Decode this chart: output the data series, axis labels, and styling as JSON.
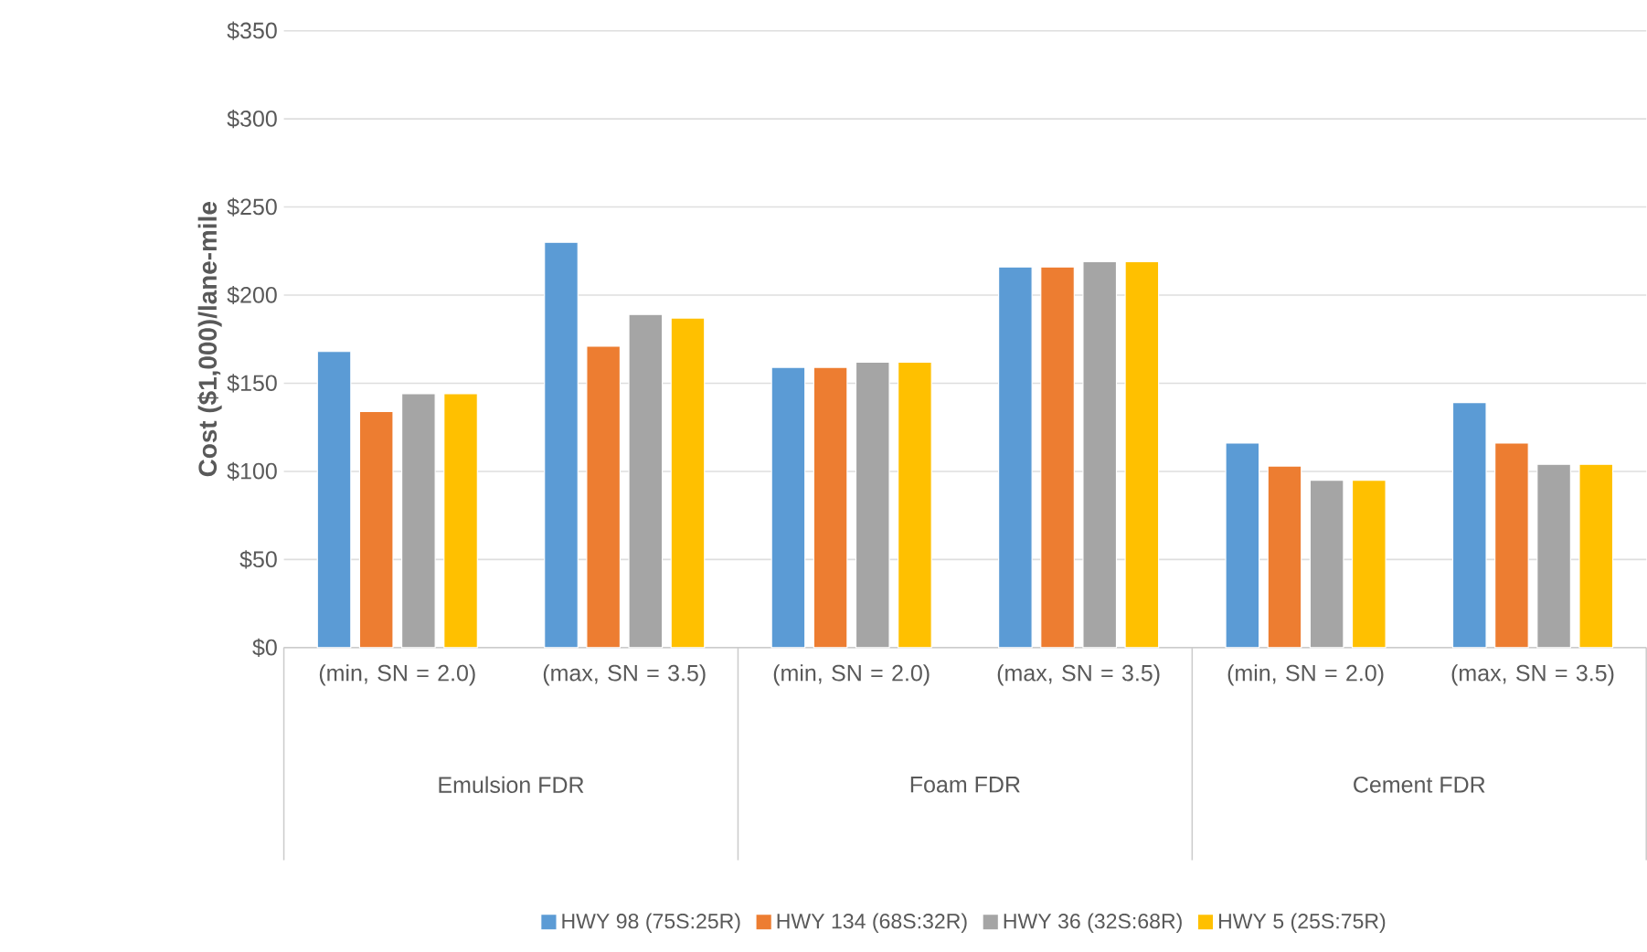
{
  "chart_data": {
    "type": "bar",
    "ylabel": "Cost ($1,000)/lane-mile",
    "categories": [
      "(min, SN = 2.0)",
      "(max, SN = 3.5)",
      "(min, SN = 2.0)",
      "(max, SN = 3.5)",
      "(min, SN = 2.0)",
      "(max, SN = 3.5)"
    ],
    "annotations": [
      "Emulsion FDR",
      "Foam FDR",
      "Cement FDR"
    ],
    "series": [
      {
        "name": "HWY 98 (75S:25R)",
        "color": "#5b9bd5",
        "values": [
          168,
          230,
          159,
          216,
          116,
          139
        ]
      },
      {
        "name": "HWY 134 (68S:32R)",
        "color": "#ed7d31",
        "values": [
          134,
          171,
          159,
          216,
          103,
          116
        ]
      },
      {
        "name": "HWY 36 (32S:68R)",
        "color": "#a5a5a5",
        "values": [
          144,
          189,
          162,
          219,
          95,
          104
        ]
      },
      {
        "name": "HWY 5 (25S:75R)",
        "color": "#ffc000",
        "values": [
          144,
          187,
          162,
          219,
          95,
          104
        ]
      }
    ],
    "ylim": [
      0,
      350
    ],
    "yticks": [
      {
        "value": 0,
        "label": "$0"
      },
      {
        "value": 50,
        "label": "$50"
      },
      {
        "value": 100,
        "label": "$100"
      },
      {
        "value": 150,
        "label": "$150"
      },
      {
        "value": 200,
        "label": "$200"
      },
      {
        "value": 250,
        "label": "$250"
      },
      {
        "value": 300,
        "label": "$300"
      },
      {
        "value": 350,
        "label": "$350"
      }
    ],
    "grid": "y",
    "legend": "bottom"
  }
}
